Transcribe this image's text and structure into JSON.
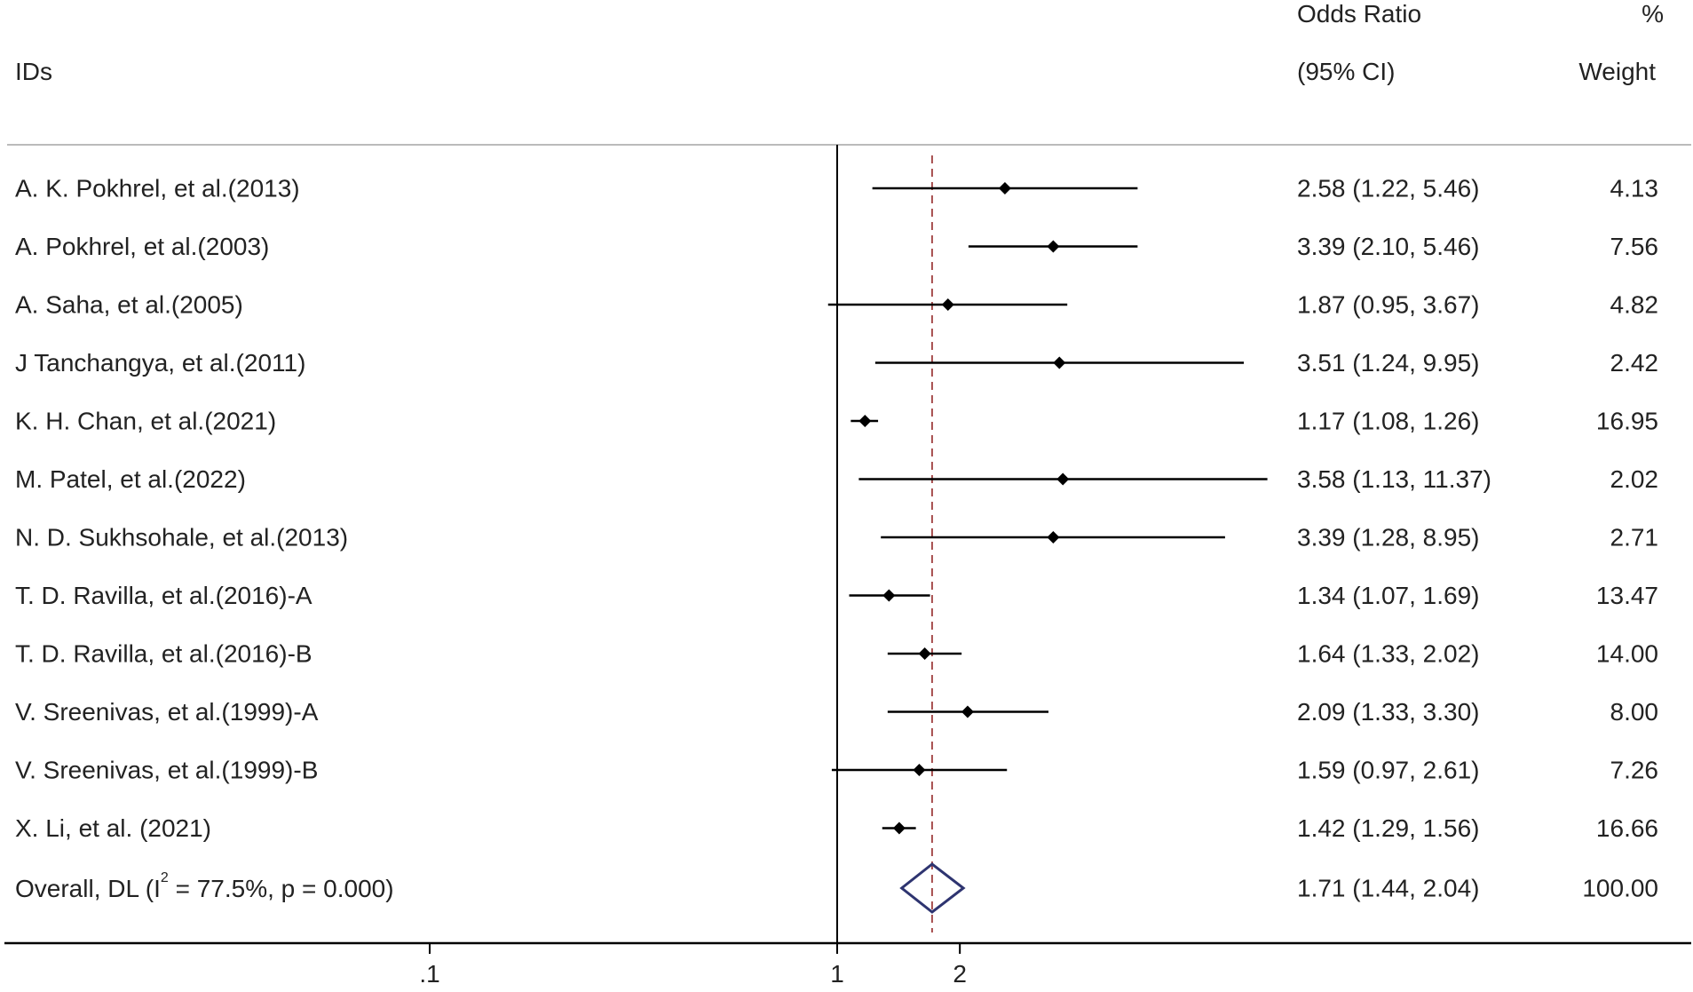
{
  "chart_data": {
    "type": "forest",
    "xscale": "log",
    "xticks": [
      {
        "value": 0.1,
        "label": ".1"
      },
      {
        "value": 1,
        "label": "1"
      },
      {
        "value": 2,
        "label": "2"
      }
    ],
    "headers": {
      "ids": "IDs",
      "or_line1": "Odds Ratio",
      "or_line2": "(95% CI)",
      "weight_line1": "%",
      "weight_line2": "Weight"
    },
    "null_line": 1,
    "overall_line": 1.71,
    "studies": [
      {
        "id": "A. K. Pokhrel, et al.(2013)",
        "or": 2.58,
        "lo": 1.22,
        "hi": 5.46,
        "ci_text": "2.58 (1.22, 5.46)",
        "weight": "4.13"
      },
      {
        "id": "A. Pokhrel, et al.(2003)",
        "or": 3.39,
        "lo": 2.1,
        "hi": 5.46,
        "ci_text": "3.39 (2.10, 5.46)",
        "weight": "7.56"
      },
      {
        "id": "A. Saha, et al.(2005)",
        "or": 1.87,
        "lo": 0.95,
        "hi": 3.67,
        "ci_text": "1.87 (0.95, 3.67)",
        "weight": "4.82"
      },
      {
        "id": "J Tanchangya, et al.(2011)",
        "or": 3.51,
        "lo": 1.24,
        "hi": 9.95,
        "ci_text": "3.51 (1.24, 9.95)",
        "weight": "2.42"
      },
      {
        "id": "K. H. Chan, et al.(2021)",
        "or": 1.17,
        "lo": 1.08,
        "hi": 1.26,
        "ci_text": "1.17 (1.08, 1.26)",
        "weight": "16.95"
      },
      {
        "id": "M. Patel, et al.(2022)",
        "or": 3.58,
        "lo": 1.13,
        "hi": 11.37,
        "ci_text": "3.58 (1.13, 11.37)",
        "weight": "2.02"
      },
      {
        "id": "N. D. Sukhsohale, et al.(2013)",
        "or": 3.39,
        "lo": 1.28,
        "hi": 8.95,
        "ci_text": "3.39 (1.28, 8.95)",
        "weight": "2.71"
      },
      {
        "id": "T. D. Ravilla, et al.(2016)-A",
        "or": 1.34,
        "lo": 1.07,
        "hi": 1.69,
        "ci_text": "1.34 (1.07, 1.69)",
        "weight": "13.47"
      },
      {
        "id": "T. D. Ravilla, et al.(2016)-B",
        "or": 1.64,
        "lo": 1.33,
        "hi": 2.02,
        "ci_text": "1.64 (1.33, 2.02)",
        "weight": "14.00"
      },
      {
        "id": "V. Sreenivas, et al.(1999)-A",
        "or": 2.09,
        "lo": 1.33,
        "hi": 3.3,
        "ci_text": "2.09 (1.33, 3.30)",
        "weight": "8.00"
      },
      {
        "id": "V. Sreenivas, et al.(1999)-B",
        "or": 1.59,
        "lo": 0.97,
        "hi": 2.61,
        "ci_text": "1.59 (0.97, 2.61)",
        "weight": "7.26"
      },
      {
        "id": "X. Li, et al. (2021)",
        "or": 1.42,
        "lo": 1.29,
        "hi": 1.56,
        "ci_text": "1.42 (1.29, 1.56)",
        "weight": "16.66"
      }
    ],
    "overall": {
      "label_prefix": "Overall, DL (I",
      "label_sup": "2",
      "label_suffix": " = 77.5%, p = 0.000)",
      "or": 1.71,
      "lo": 1.44,
      "hi": 2.04,
      "ci_text": "1.71 (1.44, 2.04)",
      "weight": "100.00"
    },
    "colors": {
      "text": "#222222",
      "point": "#000000",
      "ci_line": "#000000",
      "overall_diamond": "#2e3470",
      "overall_line": "#a04040",
      "separator": "#bbbbbb"
    }
  }
}
